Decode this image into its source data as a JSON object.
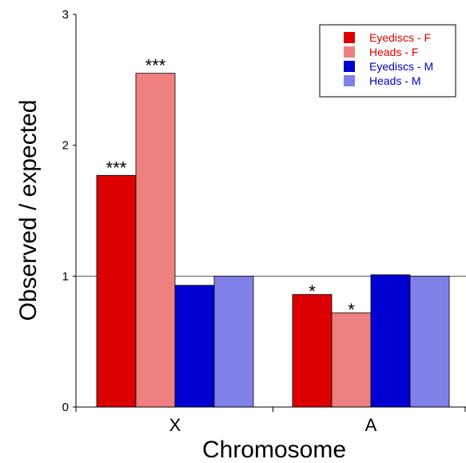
{
  "chart_data": {
    "type": "bar",
    "title": "",
    "xlabel": "Chromosome",
    "ylabel": "Observed / expected",
    "categories": [
      "X",
      "A"
    ],
    "ylim": [
      0,
      3
    ],
    "yticks": [
      0,
      1,
      2,
      3
    ],
    "reference_line": 1,
    "grid": false,
    "legend_position": "top-right",
    "series": [
      {
        "name": "Eyediscs - F",
        "color": "#dd0000",
        "text_color": "#dd0000",
        "values": [
          1.77,
          0.86
        ],
        "annotations": [
          "***",
          "*"
        ]
      },
      {
        "name": "Heads - F",
        "color": "#ef8080",
        "text_color": "#dd0000",
        "values": [
          2.55,
          0.72
        ],
        "annotations": [
          "***",
          "*"
        ]
      },
      {
        "name": "Eyediscs - M",
        "color": "#0000d0",
        "text_color": "#0000d0",
        "values": [
          0.93,
          1.01
        ],
        "annotations": [
          "",
          ""
        ]
      },
      {
        "name": "Heads - M",
        "color": "#8080e8",
        "text_color": "#0000d0",
        "values": [
          1.0,
          1.0
        ],
        "annotations": [
          "",
          ""
        ]
      }
    ]
  }
}
